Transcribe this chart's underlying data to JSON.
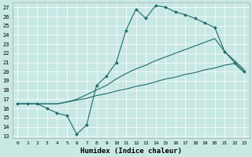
{
  "xlabel": "Humidex (Indice chaleur)",
  "background_color": "#c8e8e4",
  "line_color": "#1f6b6b",
  "grid_color": "#ffffff",
  "xlim": [
    -0.5,
    23.5
  ],
  "ylim": [
    12.8,
    27.5
  ],
  "xticks": [
    0,
    1,
    2,
    3,
    4,
    5,
    6,
    7,
    8,
    9,
    10,
    11,
    12,
    13,
    14,
    15,
    16,
    17,
    18,
    19,
    20,
    21,
    22,
    23
  ],
  "yticks": [
    13,
    14,
    15,
    16,
    17,
    18,
    19,
    20,
    21,
    22,
    23,
    24,
    25,
    26,
    27
  ],
  "line1_x": [
    0,
    1,
    2,
    3,
    4,
    5,
    6,
    7,
    8,
    9,
    10,
    11,
    12,
    13,
    14,
    15,
    16,
    17,
    18,
    19,
    20,
    21,
    22,
    23
  ],
  "line1_y": [
    16.5,
    16.5,
    16.5,
    16.5,
    16.5,
    16.7,
    16.9,
    17.1,
    17.4,
    17.6,
    17.9,
    18.1,
    18.4,
    18.6,
    18.9,
    19.2,
    19.4,
    19.7,
    19.9,
    20.2,
    20.4,
    20.7,
    20.9,
    19.9
  ],
  "line2_x": [
    0,
    1,
    2,
    3,
    4,
    5,
    6,
    7,
    8,
    9,
    10,
    11,
    12,
    13,
    14,
    15,
    16,
    17,
    18,
    19,
    20,
    21,
    22,
    23
  ],
  "line2_y": [
    16.5,
    16.5,
    16.5,
    16.5,
    16.5,
    16.7,
    17.0,
    17.5,
    18.0,
    18.5,
    19.2,
    19.8,
    20.3,
    20.7,
    21.2,
    21.6,
    22.0,
    22.4,
    22.8,
    23.2,
    23.6,
    22.2,
    21.2,
    20.2
  ],
  "line3_x": [
    0,
    1,
    2,
    3,
    4,
    5,
    6,
    7,
    8,
    9,
    10,
    11,
    12,
    13,
    14,
    15,
    16,
    17,
    18,
    19,
    20,
    21,
    22,
    23
  ],
  "line3_y": [
    16.5,
    16.5,
    16.5,
    16.0,
    15.5,
    15.2,
    13.2,
    14.2,
    18.5,
    19.5,
    21.0,
    24.5,
    26.8,
    25.8,
    27.2,
    27.0,
    26.5,
    26.2,
    25.8,
    25.3,
    24.8,
    22.2,
    21.0,
    20.0
  ]
}
